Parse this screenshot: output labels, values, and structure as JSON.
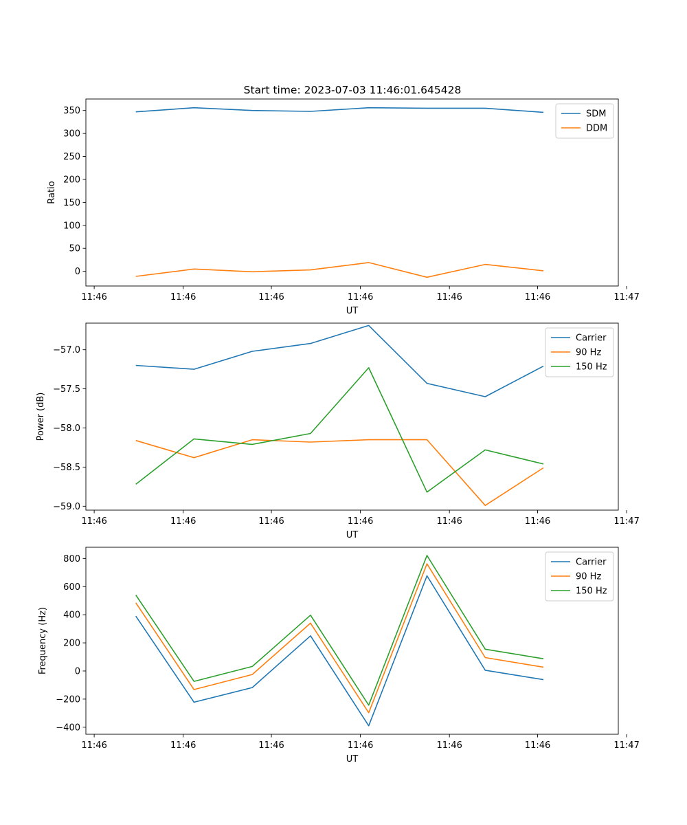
{
  "title": "Start time: 2023-07-03 11:46:01.645428",
  "colors": {
    "carrier": "#1f77b4",
    "hz90": "#ff7f0e",
    "hz150": "#2ca02c",
    "axis": "#000000",
    "legend_border": "#cccccc"
  },
  "chart_data": [
    {
      "type": "line",
      "xlabel": "UT",
      "ylabel": "Ratio",
      "x": [
        0.5,
        1.2,
        1.9,
        2.6,
        3.3,
        4.0,
        4.7,
        5.4
      ],
      "xlim": [
        -0.1,
        6.3
      ],
      "x_ticks": [
        0,
        1.07,
        2.13,
        3.2,
        4.27,
        5.33,
        6.4
      ],
      "x_tick_labels": [
        "11:46",
        "11:46",
        "11:46",
        "11:46",
        "11:46",
        "11:46",
        "11:47"
      ],
      "ylim": [
        -32,
        375
      ],
      "y_ticks": [
        0,
        50,
        100,
        150,
        200,
        250,
        300,
        350
      ],
      "y_tick_labels": [
        "0",
        "50",
        "100",
        "150",
        "200",
        "250",
        "300",
        "350"
      ],
      "legend": [
        "SDM",
        "DDM"
      ],
      "series": [
        {
          "name": "SDM",
          "color": "#1f77b4",
          "values": [
            347,
            356,
            350,
            348,
            356,
            355,
            355,
            346
          ]
        },
        {
          "name": "DDM",
          "color": "#ff7f0e",
          "values": [
            -11,
            5,
            -1,
            3,
            19,
            -13,
            15,
            1
          ]
        }
      ]
    },
    {
      "type": "line",
      "xlabel": "UT",
      "ylabel": "Power (dB)",
      "x": [
        0.5,
        1.2,
        1.9,
        2.6,
        3.3,
        4.0,
        4.7,
        5.4
      ],
      "xlim": [
        -0.1,
        6.3
      ],
      "x_ticks": [
        0,
        1.07,
        2.13,
        3.2,
        4.27,
        5.33,
        6.4
      ],
      "x_tick_labels": [
        "11:46",
        "11:46",
        "11:46",
        "11:46",
        "11:46",
        "11:46",
        "11:47"
      ],
      "ylim": [
        -59.05,
        -56.66
      ],
      "y_ticks": [
        -59.0,
        -58.5,
        -58.0,
        -57.5,
        -57.0
      ],
      "y_tick_labels": [
        "−59.0",
        "−58.5",
        "−58.0",
        "−57.5",
        "−57.0"
      ],
      "legend": [
        "Carrier",
        "90 Hz",
        "150 Hz"
      ],
      "series": [
        {
          "name": "Carrier",
          "color": "#1f77b4",
          "values": [
            -57.2,
            -57.25,
            -57.02,
            -56.92,
            -56.69,
            -57.43,
            -57.6,
            -57.21
          ]
        },
        {
          "name": "90 Hz",
          "color": "#ff7f0e",
          "values": [
            -58.16,
            -58.38,
            -58.15,
            -58.18,
            -58.15,
            -58.15,
            -58.99,
            -58.51
          ]
        },
        {
          "name": "150 Hz",
          "color": "#2ca02c",
          "values": [
            -58.72,
            -58.14,
            -58.21,
            -58.07,
            -57.23,
            -58.82,
            -58.28,
            -58.46
          ]
        }
      ]
    },
    {
      "type": "line",
      "xlabel": "UT",
      "ylabel": "Frequency (Hz)",
      "x": [
        0.5,
        1.2,
        1.9,
        2.6,
        3.3,
        4.0,
        4.7,
        5.4
      ],
      "xlim": [
        -0.1,
        6.3
      ],
      "x_ticks": [
        0,
        1.07,
        2.13,
        3.2,
        4.27,
        5.33,
        6.4
      ],
      "x_tick_labels": [
        "11:46",
        "11:46",
        "11:46",
        "11:46",
        "11:46",
        "11:46",
        "11:47"
      ],
      "ylim": [
        -450,
        880
      ],
      "y_ticks": [
        -400,
        -200,
        0,
        200,
        400,
        600,
        800
      ],
      "y_tick_labels": [
        "−400",
        "−200",
        "0",
        "200",
        "400",
        "600",
        "800"
      ],
      "legend": [
        "Carrier",
        "90 Hz",
        "150 Hz"
      ],
      "series": [
        {
          "name": "Carrier",
          "color": "#1f77b4",
          "values": [
            390,
            -222,
            -118,
            250,
            -390,
            677,
            5,
            -62
          ]
        },
        {
          "name": "90 Hz",
          "color": "#ff7f0e",
          "values": [
            485,
            -132,
            -25,
            340,
            -297,
            762,
            95,
            27
          ]
        },
        {
          "name": "150 Hz",
          "color": "#2ca02c",
          "values": [
            540,
            -74,
            32,
            397,
            -243,
            822,
            155,
            87
          ]
        }
      ]
    }
  ]
}
